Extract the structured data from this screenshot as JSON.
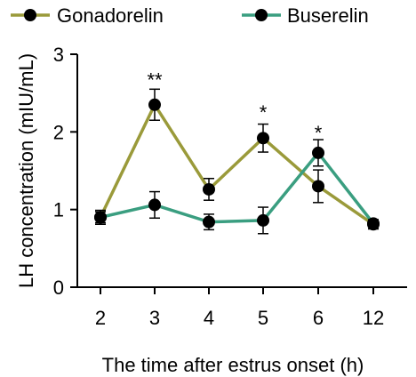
{
  "chart_data": {
    "type": "line",
    "xlabel": "The time after estrus onset (h)",
    "ylabel": "LH concentration (mIU/mL)",
    "categories": [
      "2",
      "3",
      "4",
      "5",
      "6",
      "12"
    ],
    "ylim": [
      0,
      3
    ],
    "yticks": [
      "0",
      "1",
      "2",
      "3"
    ],
    "legend_position": "top",
    "grid": false,
    "series": [
      {
        "name": "Gonadorelin",
        "color": "#9a9a3a",
        "values": [
          0.9,
          2.35,
          1.26,
          1.92,
          1.3,
          0.81
        ],
        "errors": [
          0.09,
          0.2,
          0.14,
          0.18,
          0.21,
          0.06
        ]
      },
      {
        "name": "Buserelin",
        "color": "#3a9e80",
        "values": [
          0.9,
          1.06,
          0.84,
          0.86,
          1.73,
          0.82
        ],
        "errors": [
          0.07,
          0.17,
          0.1,
          0.17,
          0.17,
          0.05
        ]
      }
    ],
    "significance": [
      {
        "category": "3",
        "label": "**",
        "y": 2.72
      },
      {
        "category": "5",
        "label": "*",
        "y": 2.3
      },
      {
        "category": "6",
        "label": "*",
        "y": 2.04
      }
    ]
  }
}
